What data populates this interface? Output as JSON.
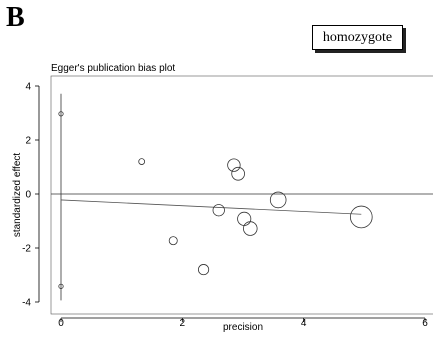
{
  "panel_label": "B",
  "legend_label": "homozygote",
  "chart_data": {
    "type": "scatter",
    "title": "Egger's publication bias plot",
    "xlabel": "precision",
    "ylabel": "standardized effect",
    "xlim": [
      0,
      6
    ],
    "ylim": [
      -4,
      4
    ],
    "xticks": [
      0,
      2,
      4,
      6
    ],
    "yticks": [
      -4,
      -2,
      0,
      2,
      4
    ],
    "grid": false,
    "reference_line_y": 0,
    "regression_line": {
      "x": [
        0,
        4.95
      ],
      "y": [
        -0.22,
        -0.75
      ]
    },
    "ci_bar": {
      "x": 0,
      "y_low": -3.42,
      "y_high": 2.97
    },
    "points": [
      {
        "x": 0.0,
        "y": 2.97,
        "weight": 0.05
      },
      {
        "x": 0.0,
        "y": -3.42,
        "weight": 0.05
      },
      {
        "x": 1.33,
        "y": 1.2,
        "weight": 1.8
      },
      {
        "x": 1.85,
        "y": -1.73,
        "weight": 3.4
      },
      {
        "x": 2.35,
        "y": -2.8,
        "weight": 5.5
      },
      {
        "x": 2.6,
        "y": -0.6,
        "weight": 6.8
      },
      {
        "x": 2.85,
        "y": 1.07,
        "weight": 8.1
      },
      {
        "x": 2.92,
        "y": 0.75,
        "weight": 8.5
      },
      {
        "x": 3.02,
        "y": -0.92,
        "weight": 9.1
      },
      {
        "x": 3.12,
        "y": -1.28,
        "weight": 9.7
      },
      {
        "x": 3.58,
        "y": -0.22,
        "weight": 12.8
      },
      {
        "x": 4.95,
        "y": -0.85,
        "weight": 24.5
      }
    ]
  }
}
